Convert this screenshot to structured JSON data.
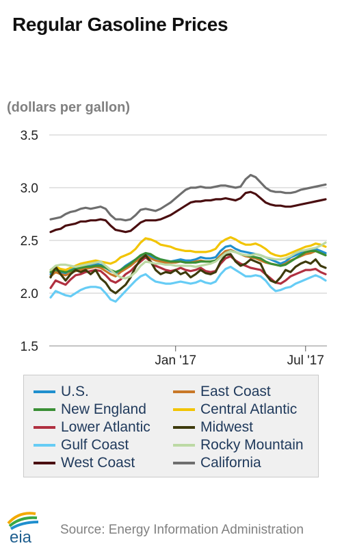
{
  "header": {
    "title": "Regular Gasoline Prices",
    "unit": "(dollars per gallon)"
  },
  "footer": {
    "source": "Source: Energy Information Administration",
    "logo_text": "eia"
  },
  "chart_data": {
    "type": "line",
    "title": "Regular Gasoline Prices",
    "ylabel": "(dollars per gallon)",
    "xlabel": "",
    "ylim": [
      1.5,
      3.5
    ],
    "yticks": [
      "1.5",
      "2.0",
      "2.5",
      "3.0",
      "3.5"
    ],
    "xticks": [
      {
        "label": "Jan '17",
        "week": 25
      },
      {
        "label": "Jul '17",
        "week": 51
      }
    ],
    "x_unit": "weeks from first observation (weekly, ~Jul 2016 - Sep 2017)",
    "grid": "horizontal",
    "legend_position": "bottom",
    "series": [
      {
        "name": "U.S.",
        "color": "#1f8fce",
        "values": [
          2.18,
          2.22,
          2.2,
          2.19,
          2.22,
          2.24,
          2.25,
          2.26,
          2.27,
          2.28,
          2.27,
          2.24,
          2.21,
          2.19,
          2.22,
          2.26,
          2.29,
          2.32,
          2.35,
          2.38,
          2.35,
          2.33,
          2.32,
          2.31,
          2.3,
          2.31,
          2.32,
          2.31,
          2.31,
          2.32,
          2.34,
          2.33,
          2.33,
          2.34,
          2.4,
          2.44,
          2.45,
          2.42,
          2.4,
          2.39,
          2.38,
          2.37,
          2.36,
          2.34,
          2.32,
          2.3,
          2.28,
          2.3,
          2.34,
          2.36,
          2.38,
          2.4,
          2.41,
          2.42,
          2.4,
          2.38
        ]
      },
      {
        "name": "East Coast",
        "color": "#c87828",
        "values": [
          2.16,
          2.2,
          2.18,
          2.17,
          2.19,
          2.21,
          2.22,
          2.23,
          2.24,
          2.25,
          2.24,
          2.21,
          2.18,
          2.16,
          2.2,
          2.23,
          2.26,
          2.3,
          2.33,
          2.36,
          2.33,
          2.31,
          2.3,
          2.29,
          2.29,
          2.29,
          2.3,
          2.29,
          2.29,
          2.3,
          2.31,
          2.3,
          2.3,
          2.31,
          2.36,
          2.4,
          2.41,
          2.39,
          2.37,
          2.35,
          2.34,
          2.33,
          2.31,
          2.29,
          2.28,
          2.27,
          2.26,
          2.28,
          2.31,
          2.33,
          2.35,
          2.37,
          2.38,
          2.4,
          2.38,
          2.36
        ]
      },
      {
        "name": "New England",
        "color": "#3a8f35",
        "values": [
          2.2,
          2.22,
          2.21,
          2.2,
          2.21,
          2.23,
          2.24,
          2.25,
          2.25,
          2.26,
          2.26,
          2.24,
          2.22,
          2.2,
          2.22,
          2.25,
          2.28,
          2.32,
          2.36,
          2.38,
          2.37,
          2.34,
          2.32,
          2.31,
          2.3,
          2.3,
          2.3,
          2.29,
          2.29,
          2.29,
          2.3,
          2.3,
          2.3,
          2.31,
          2.34,
          2.38,
          2.4,
          2.39,
          2.37,
          2.36,
          2.35,
          2.34,
          2.33,
          2.3,
          2.28,
          2.27,
          2.26,
          2.27,
          2.3,
          2.33,
          2.36,
          2.39,
          2.4,
          2.4,
          2.38,
          2.36
        ]
      },
      {
        "name": "Central Atlantic",
        "color": "#f2c400",
        "values": [
          2.22,
          2.25,
          2.23,
          2.22,
          2.24,
          2.26,
          2.28,
          2.29,
          2.3,
          2.31,
          2.3,
          2.29,
          2.28,
          2.3,
          2.34,
          2.36,
          2.38,
          2.42,
          2.48,
          2.52,
          2.51,
          2.49,
          2.46,
          2.45,
          2.44,
          2.42,
          2.41,
          2.4,
          2.4,
          2.39,
          2.39,
          2.39,
          2.4,
          2.42,
          2.48,
          2.51,
          2.53,
          2.51,
          2.48,
          2.46,
          2.46,
          2.47,
          2.45,
          2.42,
          2.38,
          2.36,
          2.35,
          2.36,
          2.38,
          2.4,
          2.42,
          2.44,
          2.45,
          2.47,
          2.46,
          2.44
        ]
      },
      {
        "name": "Lower Atlantic",
        "color": "#b03040",
        "values": [
          2.05,
          2.12,
          2.1,
          2.08,
          2.13,
          2.17,
          2.18,
          2.2,
          2.21,
          2.22,
          2.21,
          2.17,
          2.12,
          2.1,
          2.13,
          2.18,
          2.21,
          2.26,
          2.3,
          2.34,
          2.3,
          2.26,
          2.24,
          2.22,
          2.21,
          2.22,
          2.24,
          2.22,
          2.21,
          2.22,
          2.24,
          2.21,
          2.2,
          2.21,
          2.28,
          2.33,
          2.35,
          2.31,
          2.28,
          2.26,
          2.24,
          2.23,
          2.22,
          2.18,
          2.14,
          2.1,
          2.09,
          2.12,
          2.16,
          2.18,
          2.2,
          2.22,
          2.22,
          2.23,
          2.2,
          2.18
        ]
      },
      {
        "name": "Midwest",
        "color": "#3d3a0c",
        "values": [
          2.15,
          2.25,
          2.18,
          2.12,
          2.18,
          2.22,
          2.2,
          2.22,
          2.18,
          2.22,
          2.14,
          2.1,
          2.03,
          2.0,
          2.04,
          2.08,
          2.15,
          2.25,
          2.32,
          2.36,
          2.3,
          2.22,
          2.18,
          2.2,
          2.19,
          2.22,
          2.18,
          2.2,
          2.15,
          2.18,
          2.22,
          2.19,
          2.18,
          2.2,
          2.3,
          2.36,
          2.37,
          2.3,
          2.26,
          2.28,
          2.32,
          2.3,
          2.28,
          2.18,
          2.12,
          2.1,
          2.15,
          2.22,
          2.2,
          2.25,
          2.28,
          2.3,
          2.28,
          2.32,
          2.26,
          2.24
        ]
      },
      {
        "name": "Gulf Coast",
        "color": "#66ccf5",
        "values": [
          1.96,
          2.02,
          2.0,
          1.98,
          1.97,
          2.0,
          2.03,
          2.05,
          2.06,
          2.06,
          2.05,
          2.0,
          1.94,
          1.92,
          1.97,
          2.02,
          2.07,
          2.12,
          2.16,
          2.18,
          2.14,
          2.11,
          2.1,
          2.09,
          2.09,
          2.1,
          2.11,
          2.1,
          2.09,
          2.1,
          2.12,
          2.1,
          2.09,
          2.11,
          2.18,
          2.23,
          2.25,
          2.22,
          2.19,
          2.16,
          2.16,
          2.17,
          2.16,
          2.12,
          2.06,
          2.02,
          2.03,
          2.05,
          2.06,
          2.09,
          2.11,
          2.13,
          2.15,
          2.17,
          2.15,
          2.12
        ]
      },
      {
        "name": "Rocky Mountain",
        "color": "#bcd9a4",
        "values": [
          2.22,
          2.26,
          2.27,
          2.27,
          2.26,
          2.25,
          2.26,
          2.27,
          2.28,
          2.29,
          2.3,
          2.26,
          2.22,
          2.18,
          2.15,
          2.14,
          2.16,
          2.2,
          2.26,
          2.3,
          2.29,
          2.28,
          2.28,
          2.27,
          2.27,
          2.26,
          2.26,
          2.26,
          2.26,
          2.25,
          2.26,
          2.27,
          2.28,
          2.3,
          2.34,
          2.38,
          2.4,
          2.39,
          2.37,
          2.36,
          2.36,
          2.37,
          2.36,
          2.34,
          2.33,
          2.32,
          2.32,
          2.33,
          2.35,
          2.38,
          2.4,
          2.41,
          2.42,
          2.43,
          2.45,
          2.48
        ]
      },
      {
        "name": "West Coast",
        "color": "#4a0e10",
        "values": [
          2.58,
          2.6,
          2.61,
          2.64,
          2.65,
          2.66,
          2.68,
          2.68,
          2.69,
          2.69,
          2.7,
          2.69,
          2.64,
          2.6,
          2.59,
          2.58,
          2.59,
          2.63,
          2.67,
          2.69,
          2.69,
          2.69,
          2.7,
          2.72,
          2.74,
          2.77,
          2.8,
          2.83,
          2.86,
          2.87,
          2.87,
          2.88,
          2.88,
          2.89,
          2.89,
          2.9,
          2.89,
          2.88,
          2.9,
          2.95,
          2.96,
          2.94,
          2.9,
          2.86,
          2.84,
          2.83,
          2.83,
          2.82,
          2.82,
          2.83,
          2.84,
          2.85,
          2.86,
          2.87,
          2.88,
          2.89
        ]
      },
      {
        "name": "California",
        "color": "#6e6e6e",
        "values": [
          2.7,
          2.71,
          2.72,
          2.75,
          2.77,
          2.78,
          2.8,
          2.81,
          2.8,
          2.81,
          2.82,
          2.8,
          2.74,
          2.7,
          2.7,
          2.69,
          2.7,
          2.74,
          2.79,
          2.8,
          2.79,
          2.78,
          2.8,
          2.83,
          2.86,
          2.9,
          2.94,
          2.98,
          3.0,
          3.0,
          3.01,
          3.0,
          3.0,
          3.01,
          3.02,
          3.02,
          3.01,
          3.0,
          3.01,
          3.08,
          3.12,
          3.1,
          3.05,
          3.0,
          2.97,
          2.96,
          2.96,
          2.95,
          2.95,
          2.96,
          2.98,
          2.99,
          3.0,
          3.01,
          3.02,
          3.03
        ]
      }
    ]
  }
}
